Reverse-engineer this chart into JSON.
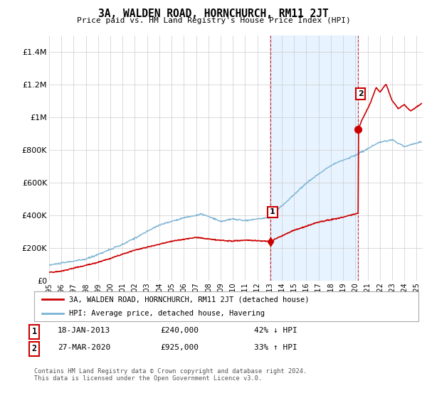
{
  "title": "3A, WALDEN ROAD, HORNCHURCH, RM11 2JT",
  "subtitle": "Price paid vs. HM Land Registry's House Price Index (HPI)",
  "ylabel_ticks": [
    "£0",
    "£200K",
    "£400K",
    "£600K",
    "£800K",
    "£1M",
    "£1.2M",
    "£1.4M"
  ],
  "ytick_values": [
    0,
    200000,
    400000,
    600000,
    800000,
    1000000,
    1200000,
    1400000
  ],
  "ylim": [
    0,
    1500000
  ],
  "xlim_start": 1995.0,
  "xlim_end": 2025.5,
  "hpi_color": "#7ab3d4",
  "hpi_shade_color": "#ddeeff",
  "property_color": "#cc0000",
  "sale1_year": 2013.04,
  "sale1_price": 240000,
  "sale1_label": "1",
  "sale2_year": 2020.23,
  "sale2_price": 925000,
  "sale2_label": "2",
  "legend_property": "3A, WALDEN ROAD, HORNCHURCH, RM11 2JT (detached house)",
  "legend_hpi": "HPI: Average price, detached house, Havering",
  "footnote": "Contains HM Land Registry data © Crown copyright and database right 2024.\nThis data is licensed under the Open Government Licence v3.0.",
  "xtick_years": [
    1995,
    1996,
    1997,
    1998,
    1999,
    2000,
    2001,
    2002,
    2003,
    2004,
    2005,
    2006,
    2007,
    2008,
    2009,
    2010,
    2011,
    2012,
    2013,
    2014,
    2015,
    2016,
    2017,
    2018,
    2019,
    2020,
    2021,
    2022,
    2023,
    2024,
    2025
  ],
  "background_color": "#ffffff",
  "grid_color": "#cccccc"
}
